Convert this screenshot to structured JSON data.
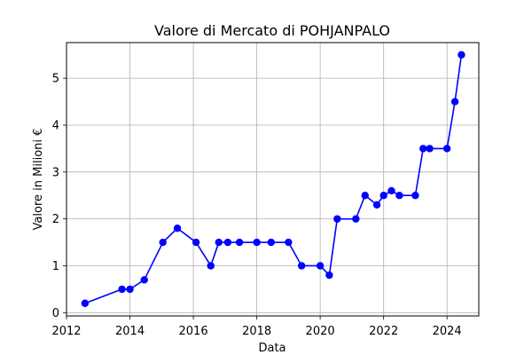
{
  "chart_data": {
    "type": "line",
    "title": "Valore di Mercato di POHJANPALO",
    "xlabel": "Data",
    "ylabel": "Valore in Milioni €",
    "xlim": [
      "2012-01-01",
      "2025-01-01"
    ],
    "ylim": [
      -0.07,
      5.76
    ],
    "xticks": [
      {
        "date": "2012-01-01",
        "label": "2012"
      },
      {
        "date": "2014-01-01",
        "label": "2014"
      },
      {
        "date": "2016-01-01",
        "label": "2016"
      },
      {
        "date": "2018-01-01",
        "label": "2018"
      },
      {
        "date": "2020-01-01",
        "label": "2020"
      },
      {
        "date": "2022-01-01",
        "label": "2022"
      },
      {
        "date": "2024-01-01",
        "label": "2024"
      }
    ],
    "yticks": [
      0,
      1,
      2,
      3,
      4,
      5
    ],
    "grid": true,
    "marker": "circle",
    "color": "#0000ff",
    "series": [
      {
        "name": "",
        "points": [
          {
            "x": "2012-08-01",
            "y": 0.2
          },
          {
            "x": "2013-10-01",
            "y": 0.5
          },
          {
            "x": "2014-01-01",
            "y": 0.5
          },
          {
            "x": "2014-06-15",
            "y": 0.7
          },
          {
            "x": "2015-01-15",
            "y": 1.5
          },
          {
            "x": "2015-07-01",
            "y": 1.8
          },
          {
            "x": "2016-02-01",
            "y": 1.5
          },
          {
            "x": "2016-07-20",
            "y": 1.0
          },
          {
            "x": "2016-10-20",
            "y": 1.5
          },
          {
            "x": "2017-02-01",
            "y": 1.5
          },
          {
            "x": "2017-06-15",
            "y": 1.5
          },
          {
            "x": "2018-01-01",
            "y": 1.5
          },
          {
            "x": "2018-06-15",
            "y": 1.5
          },
          {
            "x": "2019-01-01",
            "y": 1.5
          },
          {
            "x": "2019-06-01",
            "y": 1.0
          },
          {
            "x": "2020-01-01",
            "y": 1.0
          },
          {
            "x": "2020-04-15",
            "y": 0.8
          },
          {
            "x": "2020-07-15",
            "y": 2.0
          },
          {
            "x": "2021-02-15",
            "y": 2.0
          },
          {
            "x": "2021-06-01",
            "y": 2.5
          },
          {
            "x": "2021-10-15",
            "y": 2.3
          },
          {
            "x": "2022-01-01",
            "y": 2.5
          },
          {
            "x": "2022-04-01",
            "y": 2.6
          },
          {
            "x": "2022-07-01",
            "y": 2.5
          },
          {
            "x": "2023-01-01",
            "y": 2.5
          },
          {
            "x": "2023-04-01",
            "y": 3.5
          },
          {
            "x": "2023-06-15",
            "y": 3.5
          },
          {
            "x": "2024-01-01",
            "y": 3.5
          },
          {
            "x": "2024-04-01",
            "y": 4.5
          },
          {
            "x": "2024-06-15",
            "y": 5.5
          }
        ]
      }
    ]
  }
}
